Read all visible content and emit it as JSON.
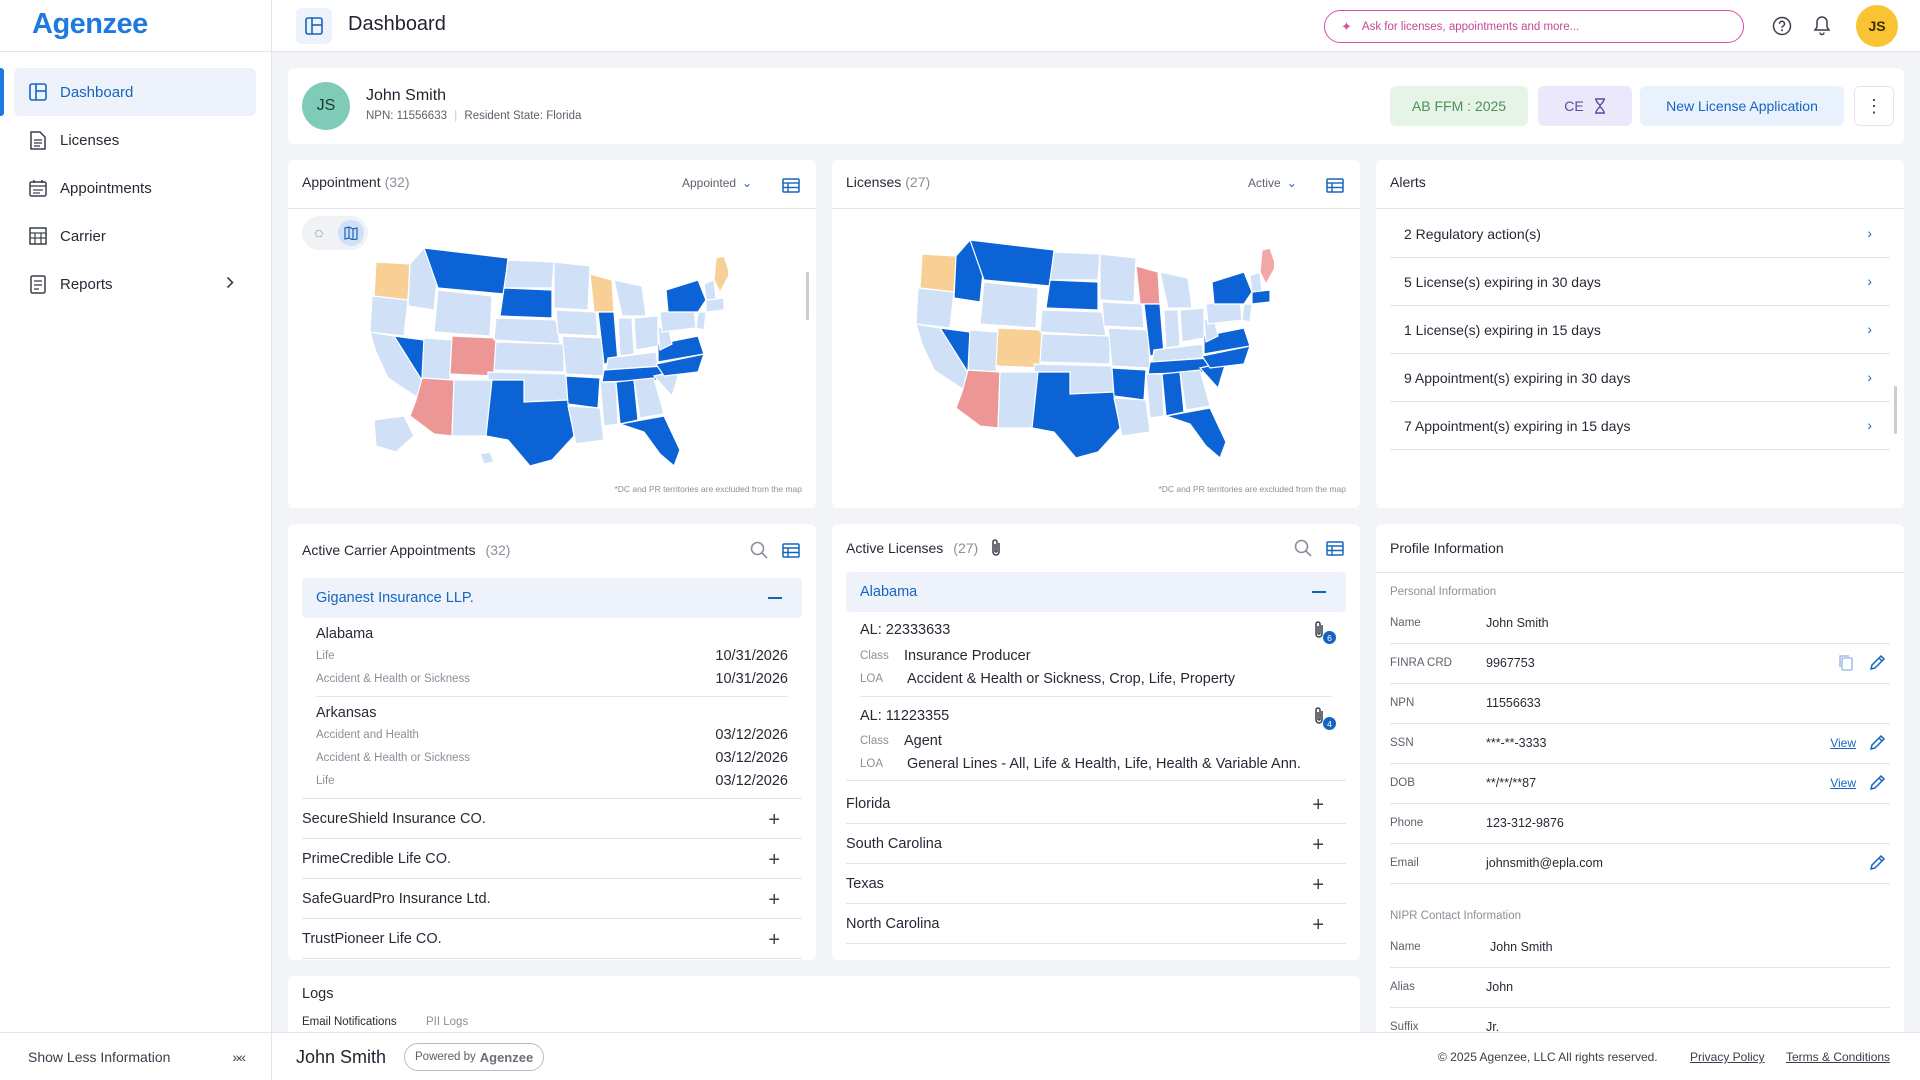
{
  "app": {
    "logo": "Agenzee"
  },
  "sidebar": {
    "items": [
      {
        "label": "Dashboard",
        "icon": "dashboard-icon",
        "active": true
      },
      {
        "label": "Licenses",
        "icon": "document-icon"
      },
      {
        "label": "Appointments",
        "icon": "calendar-icon"
      },
      {
        "label": "Carrier",
        "icon": "building-icon"
      },
      {
        "label": "Reports",
        "icon": "report-icon"
      }
    ],
    "show_less": "Show Less Information",
    "collapse_glyph": "»«"
  },
  "header": {
    "title": "Dashboard",
    "ask_placeholder": "Ask for licenses, appointments and more...",
    "user_initials": "JS"
  },
  "profile": {
    "initials": "JS",
    "name": "John Smith",
    "npn_line": "NPN: 11556633",
    "state_line": "Resident State: Florida",
    "ab_ffm": "AB FFM : 2025",
    "ce": "CE",
    "new_license": "New License Application"
  },
  "appointment_map": {
    "title": "Appointment",
    "count": "(32)",
    "filter": "Appointed",
    "note": "*DC and PR territories are excluded from the map"
  },
  "licenses_map": {
    "title": "Licenses",
    "count": "(27)",
    "filter": "Active",
    "note": "*DC and PR territories are excluded from the map"
  },
  "alerts": {
    "title": "Alerts",
    "items": [
      "2 Regulatory action(s)",
      "5 License(s) expiring in 30 days",
      "1 License(s) expiring in 15 days",
      "9 Appointment(s) expiring in 30 days",
      "7 Appointment(s) expiring in 15 days"
    ]
  },
  "carrier_appointments": {
    "title": "Active Carrier Appointments",
    "count": "(32)",
    "open_carrier": "Giganest Insurance LLP.",
    "states": [
      {
        "state": "Alabama",
        "lines": [
          {
            "lob": "Life",
            "date": "10/31/2026"
          },
          {
            "lob": "Accident & Health or Sickness",
            "date": "10/31/2026"
          }
        ]
      },
      {
        "state": "Arkansas",
        "lines": [
          {
            "lob": "Accident and Health",
            "date": "03/12/2026"
          },
          {
            "lob": "Accident & Health or Sickness",
            "date": "03/12/2026"
          },
          {
            "lob": "Life",
            "date": "03/12/2026"
          }
        ]
      }
    ],
    "collapsed": [
      "SecureShield Insurance CO.",
      "PrimeCredible Life CO.",
      "SafeGuardPro Insurance Ltd.",
      "TrustPioneer Life CO."
    ]
  },
  "active_licenses": {
    "title": "Active Licenses",
    "count": "(27)",
    "open_state": "Alabama",
    "licenses": [
      {
        "number": "AL: 22333633",
        "class_label": "Class",
        "class": "Insurance Producer",
        "loa_label": "LOA",
        "loa": "Accident & Health or Sickness, Crop, Life, Property",
        "attachments": "6"
      },
      {
        "number": "AL: 11223355",
        "class_label": "Class",
        "class": "Agent",
        "loa_label": "LOA",
        "loa": "General Lines - All, Life & Health, Life, Health & Variable Ann.",
        "attachments": "4"
      }
    ],
    "collapsed": [
      "Florida",
      "South Carolina",
      "Texas",
      "North Carolina"
    ]
  },
  "profile_info": {
    "title": "Profile Information",
    "personal_section": "Personal Information",
    "view_label": "View",
    "personal": [
      {
        "label": "Name",
        "value": "John Smith"
      },
      {
        "label": "FINRA CRD",
        "value": "9967753"
      },
      {
        "label": "NPN",
        "value": "11556633"
      },
      {
        "label": "SSN",
        "value": "***-**-3333"
      },
      {
        "label": "DOB",
        "value": "**/**/**87"
      },
      {
        "label": "Phone",
        "value": "123-312-9876"
      },
      {
        "label": "Email",
        "value": "johnsmith@epla.com"
      }
    ],
    "nipr_section": "NIPR Contact Information",
    "nipr": [
      {
        "label": "Name",
        "value": "John Smith"
      },
      {
        "label": "Alias",
        "value": "John"
      },
      {
        "label": "Suffix",
        "value": "Jr."
      }
    ]
  },
  "logs": {
    "title": "Logs",
    "tabs": [
      "Email Notifications",
      "PII Logs"
    ]
  },
  "footer": {
    "name": "John Smith",
    "powered_by": "Powered by",
    "powered_brand": "Agenzee",
    "copyright": "© 2025 Agenzee, LLC All rights reserved.",
    "privacy": "Privacy Policy",
    "terms": "Terms & Conditions"
  },
  "colors": {
    "accent": "#1565c0",
    "brand": "#1f7ae0",
    "map_dark": "#0b63d6",
    "map_light": "#cfe0f7",
    "map_orange": "#f8cf95",
    "map_red": "#ec9796",
    "map_pink": "#f1a7a6"
  }
}
